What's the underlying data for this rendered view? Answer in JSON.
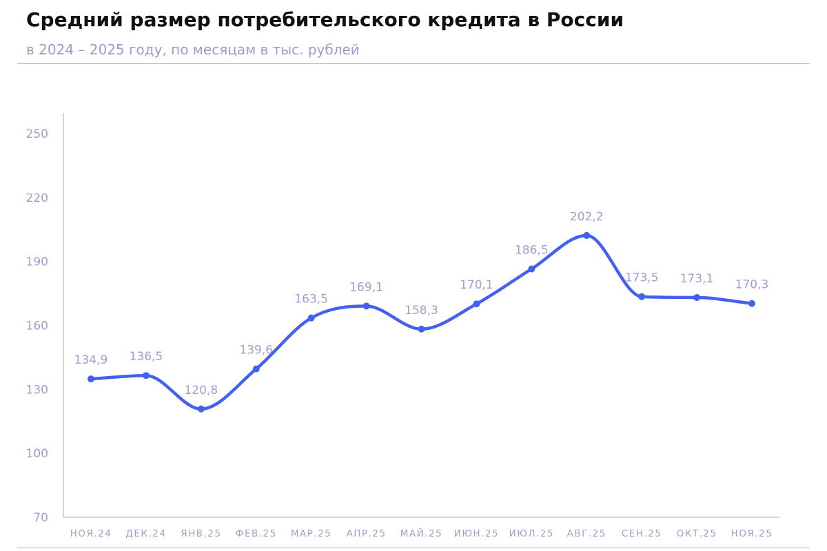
{
  "chart_data": {
    "type": "line",
    "title": "Средний размер потребительского кредита в России",
    "subtitle": "в 2024 – 2025 году, по месяцам в тыс. рублей",
    "categories": [
      "НОЯ.24",
      "ДЕК.24",
      "ЯНВ.25",
      "ФЕВ.25",
      "МАР.25",
      "АПР.25",
      "МАЙ.25",
      "ИЮН.25",
      "ИЮЛ.25",
      "АВГ.25",
      "СЕН.25",
      "ОКТ.25",
      "НОЯ.25"
    ],
    "series": [
      {
        "values": [
          134.9,
          136.5,
          120.8,
          139.6,
          163.5,
          169.1,
          158.3,
          170.1,
          186.5,
          202.2,
          173.5,
          173.1,
          170.3
        ],
        "labels": [
          "134,9",
          "136,5",
          "120,8",
          "139,6",
          "163,5",
          "169,1",
          "158,3",
          "170,1",
          "186,5",
          "202,2",
          "173,5",
          "173,1",
          "170,3"
        ],
        "color": "#4361f0"
      }
    ],
    "ylim": [
      70,
      250
    ],
    "yticks": [
      70,
      100,
      130,
      160,
      190,
      220,
      250
    ],
    "ytick_labels": [
      "70",
      "100",
      "130",
      "160",
      "190",
      "220",
      "250"
    ],
    "grid": false,
    "xlabel": "",
    "ylabel": ""
  },
  "colors": {
    "line": "#4361f0",
    "axis": "#b4b6d6",
    "labels": "#9d9fcc"
  }
}
